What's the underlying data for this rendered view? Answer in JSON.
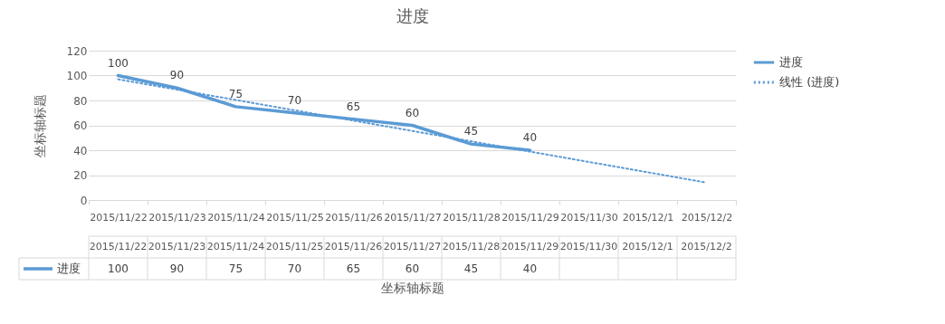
{
  "chart_data": {
    "type": "line",
    "title": "进度",
    "xlabel": "坐标轴标题",
    "ylabel": "坐标轴标题",
    "categories": [
      "2015/11/22",
      "2015/11/23",
      "2015/11/24",
      "2015/11/25",
      "2015/11/26",
      "2015/11/27",
      "2015/11/28",
      "2015/11/29",
      "2015/11/30",
      "2015/12/1",
      "2015/12/2"
    ],
    "series": [
      {
        "name": "进度",
        "color": "#5b9bd5",
        "line_style": "solid",
        "values": [
          100,
          90,
          75,
          70,
          65,
          60,
          45,
          40,
          null,
          null,
          null
        ],
        "value_labels": [
          "100",
          "90",
          "75",
          "70",
          "65",
          "60",
          "45",
          "40",
          null,
          null,
          null
        ]
      },
      {
        "name": "线性 (进度)",
        "type": "line",
        "color": "#5b9bd5",
        "line_style": "dotted",
        "x": [
          "2015/11/22",
          "2015/12/2"
        ],
        "values": [
          97,
          14
        ]
      }
    ],
    "ylim": [
      0,
      120
    ],
    "yticks": [
      0,
      20,
      40,
      60,
      80,
      100,
      120
    ],
    "grid": "y",
    "legend": "right"
  }
}
